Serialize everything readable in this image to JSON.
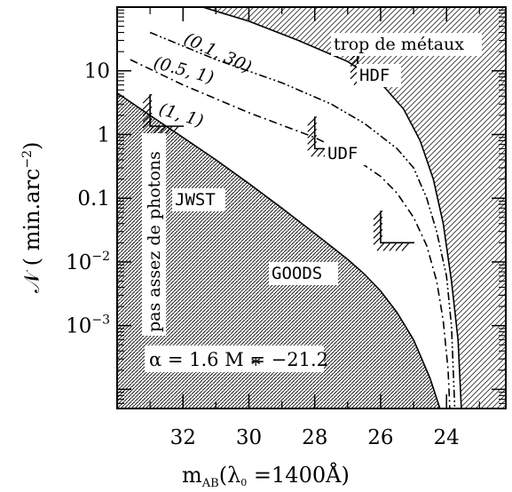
{
  "chart_data": {
    "type": "line",
    "xlabel": "m",
    "xlabel_sub": "AB",
    "xlabel_rest": "(λ",
    "xlabel_rest_sub": "0",
    "xlabel_end": " =1400Å)",
    "ylabel": "𝒩  ( min.arc",
    "ylabel_sup": "−2",
    "ylabel_end": ")",
    "x_reversed": true,
    "xlim": [
      34.0,
      22.2
    ],
    "y_log": true,
    "ylim": [
      5e-05,
      100
    ],
    "x_ticks": [
      32,
      30,
      28,
      26,
      24
    ],
    "x_tick_labels": [
      "32",
      "30",
      "28",
      "26",
      "24"
    ],
    "y_ticks": [
      10,
      1,
      0.1,
      0.01,
      0.001
    ],
    "y_tick_labels": [
      {
        "base": "10",
        "sup": ""
      },
      {
        "base": "1",
        "sup": ""
      },
      {
        "base": "0.1",
        "sup": ""
      },
      {
        "base": "10",
        "sup": "−2"
      },
      {
        "base": "10",
        "sup": "−3"
      }
    ],
    "series": [
      {
        "name": "(1, 1)",
        "style": "solid",
        "points": [
          [
            34.0,
            4.5
          ],
          [
            33.0,
            2.0
          ],
          [
            32.0,
            0.9
          ],
          [
            31.0,
            0.4
          ],
          [
            30.0,
            0.17
          ],
          [
            29.0,
            0.07
          ],
          [
            28.0,
            0.028
          ],
          [
            27.0,
            0.011
          ],
          [
            26.5,
            0.0065
          ],
          [
            26.0,
            0.0035
          ],
          [
            25.5,
            0.0016
          ],
          [
            25.0,
            0.0006
          ],
          [
            24.5,
            0.00015
          ],
          [
            24.2,
            5e-05
          ]
        ]
      },
      {
        "name": "(1, 1)",
        "style": "dash-dot",
        "points": [
          [
            33.6,
            15
          ],
          [
            32.0,
            6.0
          ],
          [
            30.0,
            2.2
          ],
          [
            28.0,
            0.9
          ],
          [
            27.0,
            0.5
          ],
          [
            26.0,
            0.22
          ],
          [
            25.5,
            0.12
          ],
          [
            25.0,
            0.05
          ],
          [
            24.6,
            0.018
          ],
          [
            24.3,
            0.005
          ],
          [
            24.1,
            0.0012
          ],
          [
            23.95,
            0.0002
          ],
          [
            23.9,
            5e-05
          ]
        ]
      },
      {
        "name": "(0.5, 1)",
        "style": "dash-dot-dot",
        "points": [
          [
            33.0,
            40
          ],
          [
            31.0,
            15
          ],
          [
            29.0,
            6.5
          ],
          [
            27.5,
            3.0
          ],
          [
            26.5,
            1.5
          ],
          [
            25.5,
            0.6
          ],
          [
            25.0,
            0.3
          ],
          [
            24.6,
            0.1
          ],
          [
            24.3,
            0.03
          ],
          [
            24.0,
            0.006
          ],
          [
            23.85,
            0.001
          ],
          [
            23.75,
            5e-05
          ]
        ]
      },
      {
        "name": "(0.1, 30)",
        "style": "solid",
        "points": [
          [
            31.4,
            100
          ],
          [
            30.0,
            60
          ],
          [
            28.5,
            30
          ],
          [
            27.0,
            14
          ],
          [
            26.0,
            6.5
          ],
          [
            25.3,
            2.5
          ],
          [
            24.8,
            0.8
          ],
          [
            24.4,
            0.2
          ],
          [
            24.1,
            0.04
          ],
          [
            23.85,
            0.005
          ],
          [
            23.65,
            0.0006
          ],
          [
            23.55,
            5e-05
          ]
        ]
      }
    ],
    "regions": [
      {
        "name": "pas assez de photons",
        "pattern": "dense-dots"
      },
      {
        "name": "trop de métaux",
        "pattern": "hatch"
      }
    ],
    "surveys": [
      {
        "name": "JWST",
        "m": 33.0,
        "N": 1.35
      },
      {
        "name": "UDF",
        "m": 28.0,
        "N": 0.6
      },
      {
        "name": "HDF",
        "m": 26.7,
        "N": 8.0
      },
      {
        "name": "GOODS",
        "m": 26.0,
        "N": 0.02
      }
    ],
    "curve_labels": [
      "(0.1,  30)",
      "(0.5,  1)",
      "(1,  1)"
    ],
    "region_labels": {
      "left": "pas assez de photons",
      "right": "trop de métaux"
    },
    "params": "α = 1.6   M  = −21.2",
    "params_sub": "*",
    "legend_position": "none",
    "grid": false
  }
}
